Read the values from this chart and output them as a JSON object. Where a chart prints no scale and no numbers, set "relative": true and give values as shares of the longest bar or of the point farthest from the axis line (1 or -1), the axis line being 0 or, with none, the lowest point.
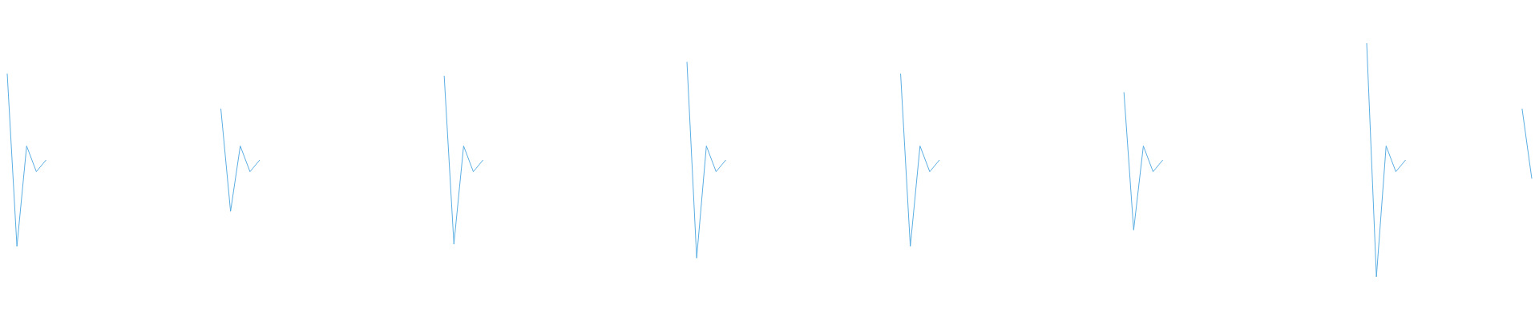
{
  "chart_data": {
    "type": "line",
    "relative": true,
    "categories": [
      null,
      null,
      null,
      null,
      null,
      null,
      null,
      null,
      null,
      null,
      null,
      null,
      null,
      null,
      null,
      null,
      null,
      null,
      null,
      null,
      null,
      null,
      null,
      null,
      null,
      null,
      null,
      null,
      null,
      null,
      null,
      null,
      null,
      null,
      null,
      null,
      null,
      null,
      null,
      null,
      null,
      null,
      null,
      null,
      null,
      null,
      null,
      null,
      null,
      null,
      null,
      null,
      null,
      null,
      null,
      null,
      null,
      null,
      null,
      null,
      null,
      null,
      null,
      null,
      null,
      null,
      null,
      null,
      null,
      null,
      null,
      null,
      null,
      null,
      null,
      null,
      null,
      null,
      null,
      null,
      null,
      null,
      null,
      null,
      null,
      null,
      null,
      null,
      null,
      null,
      null,
      null,
      null,
      null,
      null,
      null,
      null,
      null,
      null,
      null,
      null,
      null,
      null,
      null,
      null,
      null,
      null,
      null,
      null,
      null,
      null,
      null,
      null,
      null,
      null,
      null,
      null,
      null,
      null,
      null,
      null,
      null,
      null,
      null,
      null,
      null,
      null,
      null,
      null,
      null,
      null,
      null,
      null,
      null,
      null,
      null,
      null,
      null,
      null,
      null,
      null,
      null,
      null,
      null,
      null,
      null,
      null,
      null,
      null,
      null,
      null,
      null,
      null,
      null,
      null,
      null,
      null,
      null
    ],
    "series": [
      {
        "color": "#5aaee3",
        "values": [
          0.87,
          0.13,
          0.56,
          0.45,
          0.5,
          null,
          null,
          null,
          null,
          null,
          null,
          null,
          null,
          null,
          null,
          null,
          null,
          null,
          null,
          null,
          null,
          null,
          null,
          null,
          null,
          null,
          null,
          null,
          null,
          null,
          null,
          null,
          null,
          null,
          null,
          null,
          null,
          null,
          null,
          null,
          null,
          null,
          null,
          null,
          null,
          null,
          null,
          null,
          null,
          null,
          null,
          null,
          null,
          null,
          null,
          null,
          null,
          null,
          null,
          null,
          null,
          null,
          null,
          null,
          null,
          null,
          null,
          null,
          null,
          null,
          null,
          null,
          null,
          null,
          null,
          null,
          null,
          null,
          null,
          null,
          null,
          null,
          null,
          null,
          null,
          null,
          null,
          null,
          null,
          null,
          null,
          null,
          null,
          null,
          null,
          null,
          null,
          null,
          null,
          null,
          null,
          null,
          null,
          null,
          null,
          null,
          null,
          null,
          null,
          null,
          null,
          null,
          null,
          null,
          null,
          null,
          null,
          null,
          null,
          null,
          null,
          null,
          null,
          null,
          null,
          null,
          null,
          null,
          null,
          null,
          null,
          null,
          null,
          null,
          null,
          null,
          null,
          null,
          null,
          null,
          null,
          null,
          null,
          null,
          null,
          null,
          null,
          null,
          null,
          null,
          null,
          null,
          null,
          null,
          null,
          null,
          null,
          null
        ]
      },
      {
        "color": "#5aaee3",
        "values": [
          null,
          null,
          null,
          null,
          null,
          null,
          null,
          null,
          null,
          null,
          null,
          null,
          null,
          null,
          null,
          null,
          null,
          null,
          null,
          null,
          null,
          null,
          0.72,
          0.28,
          0.56,
          0.45,
          0.5,
          null,
          null,
          null,
          null,
          null,
          null,
          null,
          null,
          null,
          null,
          null,
          null,
          null,
          null,
          null,
          null,
          null,
          null,
          null,
          null,
          null,
          null,
          null,
          null,
          null,
          null,
          null,
          null,
          null,
          null,
          null,
          null,
          null,
          null,
          null,
          null,
          null,
          null,
          null,
          null,
          null,
          null,
          null,
          null,
          null,
          null,
          null,
          null,
          null,
          null,
          null,
          null,
          null,
          null,
          null,
          null,
          null,
          null,
          null,
          null,
          null,
          null,
          null,
          null,
          null,
          null,
          null,
          null,
          null,
          null,
          null,
          null,
          null,
          null,
          null,
          null,
          null,
          null,
          null,
          null,
          null,
          null,
          null,
          null,
          null,
          null,
          null,
          null,
          null,
          null,
          null,
          null,
          null,
          null,
          null,
          null,
          null,
          null,
          null,
          null,
          null,
          null,
          null,
          null,
          null,
          null,
          null,
          null,
          null,
          null,
          null,
          null,
          null,
          null,
          null,
          null,
          null,
          null,
          null,
          null,
          null,
          null,
          null,
          null,
          null,
          null,
          null,
          null,
          null,
          null,
          null
        ]
      },
      {
        "color": "#5aaee3",
        "values": [
          null,
          null,
          null,
          null,
          null,
          null,
          null,
          null,
          null,
          null,
          null,
          null,
          null,
          null,
          null,
          null,
          null,
          null,
          null,
          null,
          null,
          null,
          null,
          null,
          null,
          null,
          null,
          null,
          null,
          null,
          null,
          null,
          null,
          null,
          null,
          null,
          null,
          null,
          null,
          null,
          null,
          null,
          null,
          null,
          null,
          0.86,
          0.14,
          0.56,
          0.45,
          0.5,
          null,
          null,
          null,
          null,
          null,
          null,
          null,
          null,
          null,
          null,
          null,
          null,
          null,
          null,
          null,
          null,
          null,
          null,
          null,
          null,
          null,
          null,
          null,
          null,
          null,
          null,
          null,
          null,
          null,
          null,
          null,
          null,
          null,
          null,
          null,
          null,
          null,
          null,
          null,
          null,
          null,
          null,
          null,
          null,
          null,
          null,
          null,
          null,
          null,
          null,
          null,
          null,
          null,
          null,
          null,
          null,
          null,
          null,
          null,
          null,
          null,
          null,
          null,
          null,
          null,
          null,
          null,
          null,
          null,
          null,
          null,
          null,
          null,
          null,
          null,
          null,
          null,
          null,
          null,
          null,
          null,
          null,
          null,
          null,
          null,
          null,
          null,
          null,
          null,
          null,
          null,
          null,
          null,
          null,
          null,
          null,
          null,
          null,
          null,
          null,
          null,
          null,
          null,
          null,
          null,
          null,
          null,
          null
        ]
      },
      {
        "color": "#5aaee3",
        "values": [
          null,
          null,
          null,
          null,
          null,
          null,
          null,
          null,
          null,
          null,
          null,
          null,
          null,
          null,
          null,
          null,
          null,
          null,
          null,
          null,
          null,
          null,
          null,
          null,
          null,
          null,
          null,
          null,
          null,
          null,
          null,
          null,
          null,
          null,
          null,
          null,
          null,
          null,
          null,
          null,
          null,
          null,
          null,
          null,
          null,
          null,
          null,
          null,
          null,
          null,
          null,
          null,
          null,
          null,
          null,
          null,
          null,
          null,
          null,
          null,
          null,
          null,
          null,
          null,
          null,
          null,
          null,
          null,
          null,
          null,
          0.92,
          0.08,
          0.56,
          0.45,
          0.5,
          null,
          null,
          null,
          null,
          null,
          null,
          null,
          null,
          null,
          null,
          null,
          null,
          null,
          null,
          null,
          null,
          null,
          null,
          null,
          null,
          null,
          null,
          null,
          null,
          null,
          null,
          null,
          null,
          null,
          null,
          null,
          null,
          null,
          null,
          null,
          null,
          null,
          null,
          null,
          null,
          null,
          null,
          null,
          null,
          null,
          null,
          null,
          null,
          null,
          null,
          null,
          null,
          null,
          null,
          null,
          null,
          null,
          null,
          null,
          null,
          null,
          null,
          null,
          null,
          null,
          null,
          null,
          null,
          null,
          null,
          null,
          null,
          null,
          null,
          null,
          null,
          null,
          null,
          null,
          null,
          null,
          null,
          null
        ]
      },
      {
        "color": "#5aaee3",
        "values": [
          null,
          null,
          null,
          null,
          null,
          null,
          null,
          null,
          null,
          null,
          null,
          null,
          null,
          null,
          null,
          null,
          null,
          null,
          null,
          null,
          null,
          null,
          null,
          null,
          null,
          null,
          null,
          null,
          null,
          null,
          null,
          null,
          null,
          null,
          null,
          null,
          null,
          null,
          null,
          null,
          null,
          null,
          null,
          null,
          null,
          null,
          null,
          null,
          null,
          null,
          null,
          null,
          null,
          null,
          null,
          null,
          null,
          null,
          null,
          null,
          null,
          null,
          null,
          null,
          null,
          null,
          null,
          null,
          null,
          null,
          null,
          null,
          null,
          null,
          null,
          null,
          null,
          null,
          null,
          null,
          null,
          null,
          null,
          null,
          null,
          null,
          null,
          null,
          null,
          null,
          null,
          null,
          0.87,
          0.13,
          0.56,
          0.45,
          0.5,
          null,
          null,
          null,
          null,
          null,
          null,
          null,
          null,
          null,
          null,
          null,
          null,
          null,
          null,
          null,
          null,
          null,
          null,
          null,
          null,
          null,
          null,
          null,
          null,
          null,
          null,
          null,
          null,
          null,
          null,
          null,
          null,
          null,
          null,
          null,
          null,
          null,
          null,
          null,
          null,
          null,
          null,
          null,
          null,
          null,
          null,
          null,
          null,
          null,
          null,
          null,
          null,
          null,
          null,
          null,
          null,
          null,
          null,
          null,
          null,
          null
        ]
      },
      {
        "color": "#5aaee3",
        "values": [
          null,
          null,
          null,
          null,
          null,
          null,
          null,
          null,
          null,
          null,
          null,
          null,
          null,
          null,
          null,
          null,
          null,
          null,
          null,
          null,
          null,
          null,
          null,
          null,
          null,
          null,
          null,
          null,
          null,
          null,
          null,
          null,
          null,
          null,
          null,
          null,
          null,
          null,
          null,
          null,
          null,
          null,
          null,
          null,
          null,
          null,
          null,
          null,
          null,
          null,
          null,
          null,
          null,
          null,
          null,
          null,
          null,
          null,
          null,
          null,
          null,
          null,
          null,
          null,
          null,
          null,
          null,
          null,
          null,
          null,
          null,
          null,
          null,
          null,
          null,
          null,
          null,
          null,
          null,
          null,
          null,
          null,
          null,
          null,
          null,
          null,
          null,
          null,
          null,
          null,
          null,
          null,
          null,
          null,
          null,
          null,
          null,
          null,
          null,
          null,
          null,
          null,
          null,
          null,
          null,
          null,
          null,
          null,
          null,
          null,
          null,
          null,
          null,
          null,
          null,
          0.79,
          0.2,
          0.56,
          0.45,
          0.5,
          null,
          null,
          null,
          null,
          null,
          null,
          null,
          null,
          null,
          null,
          null,
          null,
          null,
          null,
          null,
          null,
          null,
          null,
          null,
          null,
          null,
          null,
          null,
          null,
          null,
          null,
          null,
          null,
          null,
          null,
          null,
          null,
          null,
          null,
          null,
          null,
          null,
          null
        ]
      },
      {
        "color": "#5aaee3",
        "values": [
          null,
          null,
          null,
          null,
          null,
          null,
          null,
          null,
          null,
          null,
          null,
          null,
          null,
          null,
          null,
          null,
          null,
          null,
          null,
          null,
          null,
          null,
          null,
          null,
          null,
          null,
          null,
          null,
          null,
          null,
          null,
          null,
          null,
          null,
          null,
          null,
          null,
          null,
          null,
          null,
          null,
          null,
          null,
          null,
          null,
          null,
          null,
          null,
          null,
          null,
          null,
          null,
          null,
          null,
          null,
          null,
          null,
          null,
          null,
          null,
          null,
          null,
          null,
          null,
          null,
          null,
          null,
          null,
          null,
          null,
          null,
          null,
          null,
          null,
          null,
          null,
          null,
          null,
          null,
          null,
          null,
          null,
          null,
          null,
          null,
          null,
          null,
          null,
          null,
          null,
          null,
          null,
          null,
          null,
          null,
          null,
          null,
          null,
          null,
          null,
          null,
          null,
          null,
          null,
          null,
          null,
          null,
          null,
          null,
          null,
          null,
          null,
          null,
          null,
          null,
          null,
          null,
          null,
          null,
          null,
          null,
          null,
          null,
          null,
          null,
          null,
          null,
          null,
          null,
          null,
          null,
          null,
          null,
          null,
          null,
          null,
          null,
          null,
          null,
          null,
          1,
          0,
          0.56,
          0.45,
          0.5,
          null,
          null,
          null,
          null,
          null,
          null,
          null,
          null,
          null,
          null,
          null,
          null,
          null
        ]
      },
      {
        "color": "#5aaee3",
        "values": [
          null,
          null,
          null,
          null,
          null,
          null,
          null,
          null,
          null,
          null,
          null,
          null,
          null,
          null,
          null,
          null,
          null,
          null,
          null,
          null,
          null,
          null,
          null,
          null,
          null,
          null,
          null,
          null,
          null,
          null,
          null,
          null,
          null,
          null,
          null,
          null,
          null,
          null,
          null,
          null,
          null,
          null,
          null,
          null,
          null,
          null,
          null,
          null,
          null,
          null,
          null,
          null,
          null,
          null,
          null,
          null,
          null,
          null,
          null,
          null,
          null,
          null,
          null,
          null,
          null,
          null,
          null,
          null,
          null,
          null,
          null,
          null,
          null,
          null,
          null,
          null,
          null,
          null,
          null,
          null,
          null,
          null,
          null,
          null,
          null,
          null,
          null,
          null,
          null,
          null,
          null,
          null,
          null,
          null,
          null,
          null,
          null,
          null,
          null,
          null,
          null,
          null,
          null,
          null,
          null,
          null,
          null,
          null,
          null,
          null,
          null,
          null,
          null,
          null,
          null,
          null,
          null,
          null,
          null,
          null,
          null,
          null,
          null,
          null,
          null,
          null,
          null,
          null,
          null,
          null,
          null,
          null,
          null,
          null,
          null,
          null,
          null,
          null,
          null,
          null,
          null,
          null,
          null,
          null,
          null,
          null,
          null,
          null,
          null,
          null,
          null,
          null,
          null,
          null,
          null,
          null,
          0.72,
          0.42
        ]
      }
    ]
  }
}
